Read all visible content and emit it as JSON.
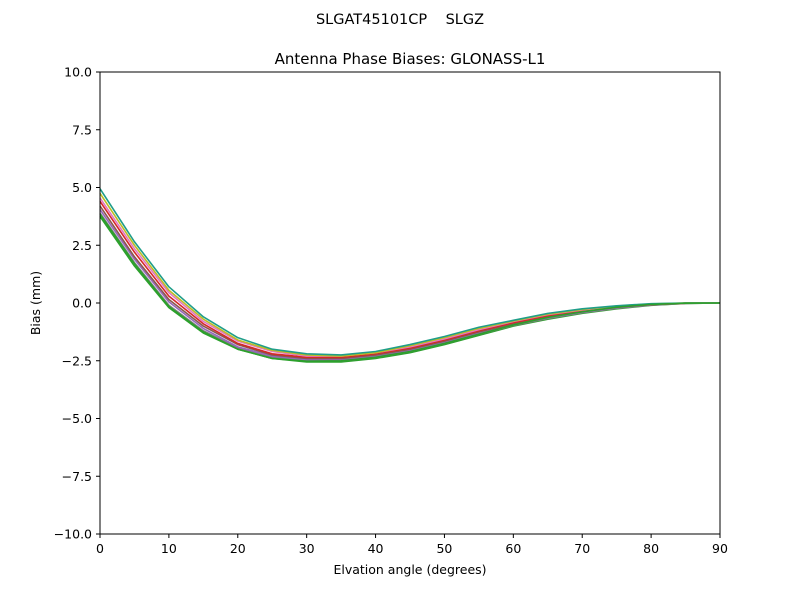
{
  "chart_data": {
    "type": "line",
    "suptitle": "SLGAT45101CP    SLGZ",
    "title": "Antenna Phase Biases: GLONASS-L1",
    "xlabel": "Elvation angle (degrees)",
    "ylabel": "Bias (mm)",
    "xlim": [
      0,
      90
    ],
    "ylim": [
      -10,
      10
    ],
    "xticks": [
      0,
      10,
      20,
      30,
      40,
      50,
      60,
      70,
      80,
      90
    ],
    "yticks": [
      10.0,
      7.5,
      5.0,
      2.5,
      0.0,
      -2.5,
      -5.0,
      -7.5,
      -10.0
    ],
    "ytick_labels": [
      "10.0",
      "7.5",
      "5.0",
      "2.5",
      "0.0",
      "−2.5",
      "−5.0",
      "−7.5",
      "−10.0"
    ],
    "grid": false,
    "x": [
      0,
      5,
      10,
      15,
      20,
      25,
      30,
      35,
      40,
      45,
      50,
      55,
      60,
      65,
      70,
      75,
      80,
      85,
      90
    ],
    "series": [
      {
        "color": "#2ca02c",
        "values": [
          3.75,
          1.6,
          -0.2,
          -1.3,
          -2.0,
          -2.4,
          -2.55,
          -2.55,
          -2.4,
          -2.15,
          -1.8,
          -1.4,
          -1.0,
          -0.7,
          -0.45,
          -0.25,
          -0.1,
          -0.02,
          0.0
        ]
      },
      {
        "color": "#7f7f7f",
        "values": [
          3.9,
          1.75,
          -0.1,
          -1.2,
          -1.95,
          -2.35,
          -2.5,
          -2.5,
          -2.35,
          -2.1,
          -1.75,
          -1.35,
          -0.97,
          -0.67,
          -0.42,
          -0.23,
          -0.09,
          -0.02,
          0.0
        ]
      },
      {
        "color": "#9467bd",
        "values": [
          4.05,
          1.9,
          0.05,
          -1.1,
          -1.9,
          -2.3,
          -2.45,
          -2.45,
          -2.3,
          -2.05,
          -1.7,
          -1.3,
          -0.93,
          -0.63,
          -0.4,
          -0.2,
          -0.08,
          -0.01,
          0.0
        ]
      },
      {
        "color": "#8c564b",
        "values": [
          4.2,
          2.0,
          0.15,
          -1.0,
          -1.8,
          -2.25,
          -2.4,
          -2.4,
          -2.25,
          -2.0,
          -1.65,
          -1.25,
          -0.9,
          -0.6,
          -0.37,
          -0.18,
          -0.07,
          -0.01,
          0.0
        ]
      },
      {
        "color": "#d62728",
        "values": [
          4.4,
          2.2,
          0.3,
          -0.9,
          -1.75,
          -2.2,
          -2.35,
          -2.35,
          -2.2,
          -1.95,
          -1.6,
          -1.2,
          -0.85,
          -0.55,
          -0.33,
          -0.16,
          -0.06,
          -0.01,
          0.0
        ]
      },
      {
        "color": "#e377c2",
        "values": [
          4.55,
          2.35,
          0.45,
          -0.8,
          -1.65,
          -2.1,
          -2.3,
          -2.3,
          -2.15,
          -1.9,
          -1.55,
          -1.15,
          -0.8,
          -0.5,
          -0.3,
          -0.14,
          -0.05,
          -0.01,
          0.0
        ]
      },
      {
        "color": "#bcbd22",
        "values": [
          4.75,
          2.5,
          0.55,
          -0.7,
          -1.6,
          -2.05,
          -2.25,
          -2.3,
          -2.15,
          -1.85,
          -1.5,
          -1.1,
          -0.78,
          -0.48,
          -0.28,
          -0.13,
          -0.04,
          0.0,
          0.0
        ]
      },
      {
        "color": "#1f9e89",
        "values": [
          4.95,
          2.65,
          0.7,
          -0.6,
          -1.5,
          -2.0,
          -2.2,
          -2.25,
          -2.1,
          -1.8,
          -1.45,
          -1.05,
          -0.75,
          -0.45,
          -0.25,
          -0.12,
          -0.03,
          0.0,
          0.0
        ]
      },
      {
        "color": "#2ca02c",
        "values": [
          3.85,
          1.7,
          -0.15,
          -1.25,
          -2.0,
          -2.4,
          -2.52,
          -2.5,
          -2.35,
          -2.1,
          -1.75,
          -1.35,
          -0.95,
          -0.62,
          -0.38,
          -0.18,
          -0.06,
          -0.01,
          0.0
        ]
      }
    ]
  }
}
